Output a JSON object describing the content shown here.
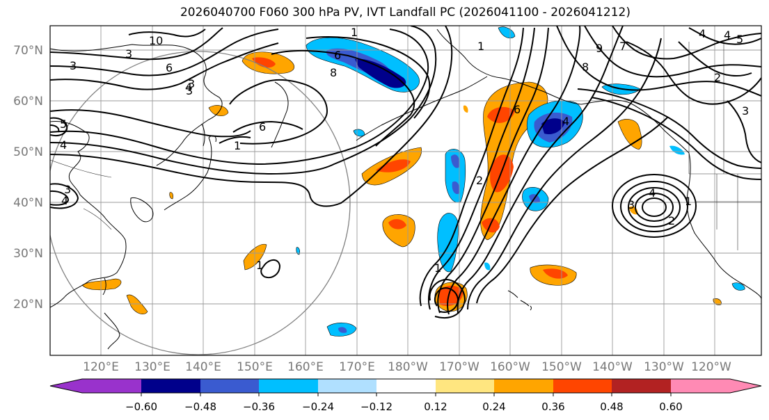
{
  "title": "2026040700 F060 300 hPa PV, IVT Landfall PC (2026041100 - 2026041212)",
  "map": {
    "lat_labels": [
      "70°N",
      "60°N",
      "50°N",
      "40°N",
      "30°N",
      "20°N"
    ],
    "lon_labels": [
      "120°E",
      "130°E",
      "140°E",
      "150°E",
      "160°E",
      "170°E",
      "180°W",
      "170°W",
      "160°W",
      "150°W",
      "140°W",
      "130°W",
      "120°W"
    ],
    "contour_labels": [
      "10",
      "3",
      "6",
      "8",
      "1",
      "6",
      "3",
      "4",
      "6",
      "1",
      "2",
      "9",
      "8",
      "7",
      "1",
      "3",
      "4",
      "3",
      "4",
      "1",
      "2",
      "3",
      "5",
      "4",
      "4",
      "6",
      "2",
      "4",
      "5",
      "3",
      "3",
      "1",
      "1",
      "4"
    ]
  },
  "colorbar": {
    "ticks": [
      "−0.60",
      "−0.48",
      "−0.36",
      "−0.24",
      "−0.12",
      "0.12",
      "0.24",
      "0.36",
      "0.48",
      "0.60"
    ],
    "colors": [
      "#9932cc",
      "#00008b",
      "#3a5bd0",
      "#00bfff",
      "#b0e0ff",
      "#ffffff",
      "#ffe680",
      "#ffa500",
      "#ff4500",
      "#b22222",
      "#ff8ab4"
    ]
  },
  "colors": {
    "frame": "#000000",
    "grid": "#999999",
    "label": "#777777"
  }
}
